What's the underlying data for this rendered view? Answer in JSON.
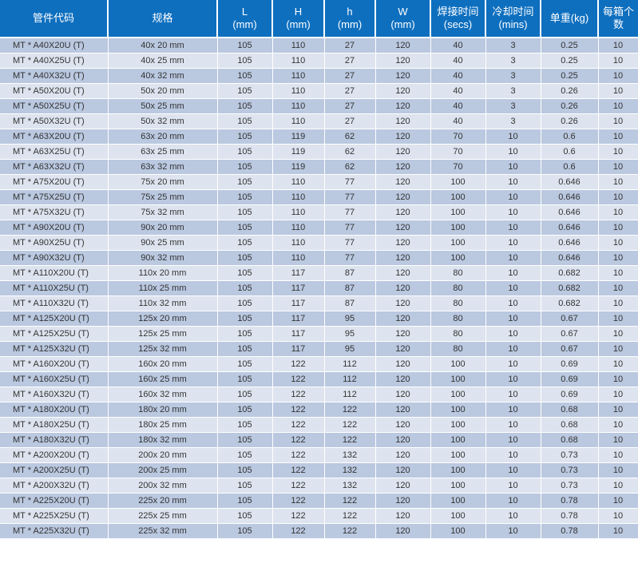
{
  "headers": [
    {
      "line1": "管件代码",
      "line2": ""
    },
    {
      "line1": "规格",
      "line2": ""
    },
    {
      "line1": "L",
      "line2": "(mm)"
    },
    {
      "line1": "H",
      "line2": "(mm)"
    },
    {
      "line1": "h",
      "line2": "(mm)"
    },
    {
      "line1": "W",
      "line2": "(mm)"
    },
    {
      "line1": "焊接时间",
      "line2": "(secs)"
    },
    {
      "line1": "冷却时间",
      "line2": "(mins)"
    },
    {
      "line1": "单重(kg)",
      "line2": ""
    },
    {
      "line1": "每箱个数",
      "line2": ""
    }
  ],
  "rows": [
    [
      "MT * A40X20U (T)",
      "40x 20 mm",
      "105",
      "110",
      "27",
      "120",
      "40",
      "3",
      "0.25",
      "10"
    ],
    [
      "MT * A40X25U (T)",
      "40x 25 mm",
      "105",
      "110",
      "27",
      "120",
      "40",
      "3",
      "0.25",
      "10"
    ],
    [
      "MT * A40X32U (T)",
      "40x 32 mm",
      "105",
      "110",
      "27",
      "120",
      "40",
      "3",
      "0.25",
      "10"
    ],
    [
      "MT * A50X20U (T)",
      "50x 20 mm",
      "105",
      "110",
      "27",
      "120",
      "40",
      "3",
      "0.26",
      "10"
    ],
    [
      "MT * A50X25U (T)",
      "50x 25 mm",
      "105",
      "110",
      "27",
      "120",
      "40",
      "3",
      "0.26",
      "10"
    ],
    [
      "MT * A50X32U (T)",
      "50x 32 mm",
      "105",
      "110",
      "27",
      "120",
      "40",
      "3",
      "0.26",
      "10"
    ],
    [
      "MT * A63X20U (T)",
      "63x 20 mm",
      "105",
      "119",
      "62",
      "120",
      "70",
      "10",
      "0.6",
      "10"
    ],
    [
      "MT * A63X25U (T)",
      "63x 25 mm",
      "105",
      "119",
      "62",
      "120",
      "70",
      "10",
      "0.6",
      "10"
    ],
    [
      "MT * A63X32U (T)",
      "63x 32 mm",
      "105",
      "119",
      "62",
      "120",
      "70",
      "10",
      "0.6",
      "10"
    ],
    [
      "MT * A75X20U (T)",
      "75x 20 mm",
      "105",
      "110",
      "77",
      "120",
      "100",
      "10",
      "0.646",
      "10"
    ],
    [
      "MT * A75X25U (T)",
      "75x 25 mm",
      "105",
      "110",
      "77",
      "120",
      "100",
      "10",
      "0.646",
      "10"
    ],
    [
      "MT * A75X32U (T)",
      "75x 32 mm",
      "105",
      "110",
      "77",
      "120",
      "100",
      "10",
      "0.646",
      "10"
    ],
    [
      "MT * A90X20U (T)",
      "90x 20 mm",
      "105",
      "110",
      "77",
      "120",
      "100",
      "10",
      "0.646",
      "10"
    ],
    [
      "MT * A90X25U (T)",
      "90x 25 mm",
      "105",
      "110",
      "77",
      "120",
      "100",
      "10",
      "0.646",
      "10"
    ],
    [
      "MT * A90X32U (T)",
      "90x 32 mm",
      "105",
      "110",
      "77",
      "120",
      "100",
      "10",
      "0.646",
      "10"
    ],
    [
      "MT * A110X20U (T)",
      "110x 20 mm",
      "105",
      "117",
      "87",
      "120",
      "80",
      "10",
      "0.682",
      "10"
    ],
    [
      "MT * A110X25U (T)",
      "110x 25 mm",
      "105",
      "117",
      "87",
      "120",
      "80",
      "10",
      "0.682",
      "10"
    ],
    [
      "MT * A110X32U (T)",
      "110x 32 mm",
      "105",
      "117",
      "87",
      "120",
      "80",
      "10",
      "0.682",
      "10"
    ],
    [
      "MT * A125X20U (T)",
      "125x 20 mm",
      "105",
      "117",
      "95",
      "120",
      "80",
      "10",
      "0.67",
      "10"
    ],
    [
      "MT * A125X25U (T)",
      "125x 25 mm",
      "105",
      "117",
      "95",
      "120",
      "80",
      "10",
      "0.67",
      "10"
    ],
    [
      "MT * A125X32U (T)",
      "125x 32 mm",
      "105",
      "117",
      "95",
      "120",
      "80",
      "10",
      "0.67",
      "10"
    ],
    [
      "MT * A160X20U (T)",
      "160x 20 mm",
      "105",
      "122",
      "112",
      "120",
      "100",
      "10",
      "0.69",
      "10"
    ],
    [
      "MT * A160X25U (T)",
      "160x 25 mm",
      "105",
      "122",
      "112",
      "120",
      "100",
      "10",
      "0.69",
      "10"
    ],
    [
      "MT * A160X32U (T)",
      "160x 32 mm",
      "105",
      "122",
      "112",
      "120",
      "100",
      "10",
      "0.69",
      "10"
    ],
    [
      "MT * A180X20U (T)",
      "180x 20 mm",
      "105",
      "122",
      "122",
      "120",
      "100",
      "10",
      "0.68",
      "10"
    ],
    [
      "MT * A180X25U (T)",
      "180x 25 mm",
      "105",
      "122",
      "122",
      "120",
      "100",
      "10",
      "0.68",
      "10"
    ],
    [
      "MT * A180X32U (T)",
      "180x 32 mm",
      "105",
      "122",
      "122",
      "120",
      "100",
      "10",
      "0.68",
      "10"
    ],
    [
      "MT * A200X20U (T)",
      "200x 20 mm",
      "105",
      "122",
      "132",
      "120",
      "100",
      "10",
      "0.73",
      "10"
    ],
    [
      "MT * A200X25U (T)",
      "200x 25 mm",
      "105",
      "122",
      "132",
      "120",
      "100",
      "10",
      "0.73",
      "10"
    ],
    [
      "MT * A200X32U (T)",
      "200x 32 mm",
      "105",
      "122",
      "132",
      "120",
      "100",
      "10",
      "0.73",
      "10"
    ],
    [
      "MT * A225X20U (T)",
      "225x 20 mm",
      "105",
      "122",
      "122",
      "120",
      "100",
      "10",
      "0.78",
      "10"
    ],
    [
      "MT * A225X25U (T)",
      "225x 25 mm",
      "105",
      "122",
      "122",
      "120",
      "100",
      "10",
      "0.78",
      "10"
    ],
    [
      "MT * A225X32U (T)",
      "225x 32 mm",
      "105",
      "122",
      "122",
      "120",
      "100",
      "10",
      "0.78",
      "10"
    ]
  ],
  "colors": {
    "header_bg": "#0e6fbf",
    "row_dark": "#bac8e0",
    "row_light": "#dde4ef"
  }
}
